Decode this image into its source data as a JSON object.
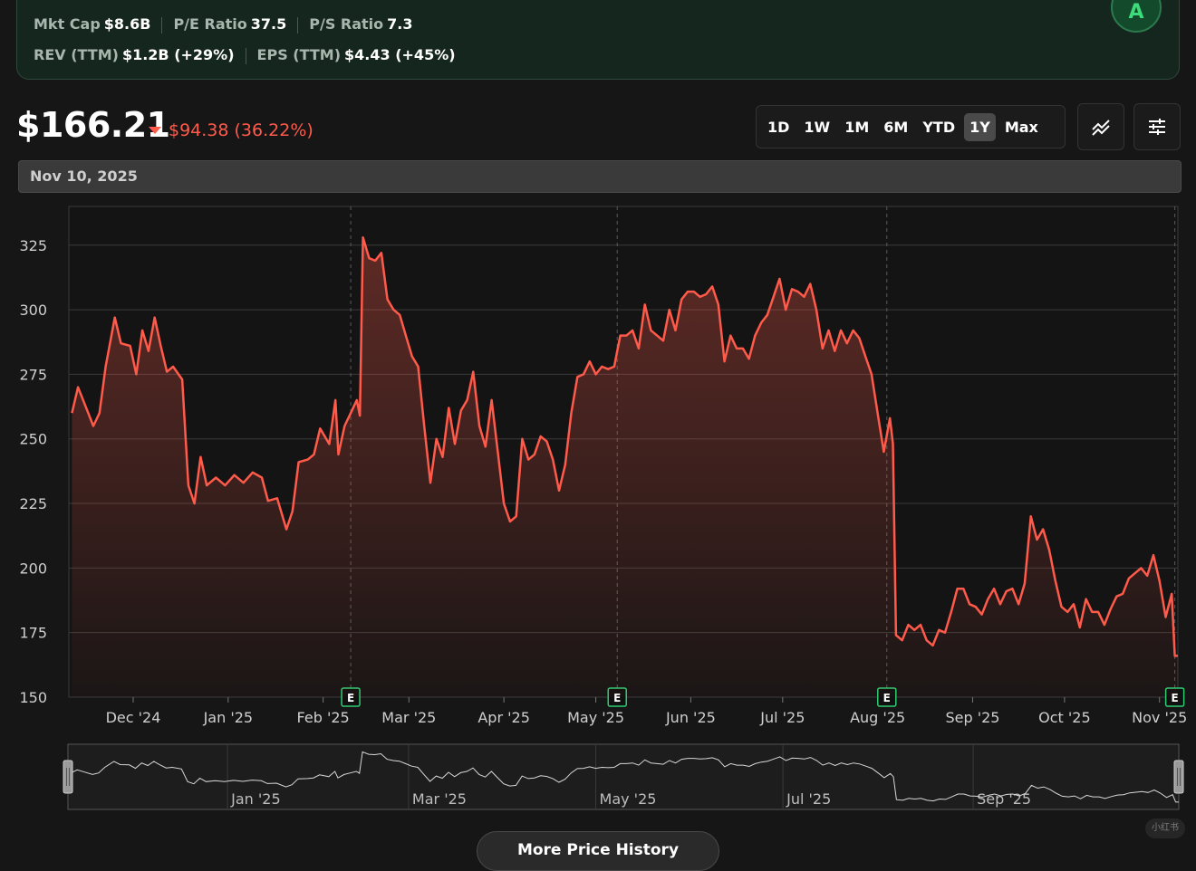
{
  "metrics": {
    "row1": [
      {
        "label": "Mkt Cap",
        "value": "$8.6B"
      },
      {
        "label": "P/E Ratio",
        "value": "37.5"
      },
      {
        "label": "P/S Ratio",
        "value": "7.3"
      }
    ],
    "row2": [
      {
        "label": "REV (TTM)",
        "value": "$1.2B (+29%)"
      },
      {
        "label": "EPS (TTM)",
        "value": "$4.43 (+45%)"
      }
    ],
    "grade": "A"
  },
  "quote": {
    "price": "$166.21",
    "change": "$94.38 (36.22%)",
    "direction": "down",
    "selected_date": "Nov 10, 2025"
  },
  "range_buttons": [
    "1D",
    "1W",
    "1M",
    "6M",
    "YTD",
    "1Y",
    "Max"
  ],
  "active_range": "1Y",
  "icons": {
    "compare": "chart-compare-icon",
    "settings": "sliders-icon"
  },
  "colors": {
    "line": "#ff5a4a",
    "earnings": "#2ecc71",
    "up": "#3ddc7a",
    "down": "#ff5a4a"
  },
  "more_button": "More Price History",
  "watermark": "小红书",
  "chart_data": {
    "type": "area",
    "ylim": [
      150,
      340
    ],
    "y_ticks": [
      150,
      175,
      200,
      225,
      250,
      275,
      300,
      325
    ],
    "x_ticks": [
      {
        "label": "Dec '24",
        "date": "2024-12-01"
      },
      {
        "label": "Jan '25",
        "date": "2025-01-01"
      },
      {
        "label": "Feb '25",
        "date": "2025-02-01"
      },
      {
        "label": "Mar '25",
        "date": "2025-03-01"
      },
      {
        "label": "Apr '25",
        "date": "2025-04-01"
      },
      {
        "label": "May '25",
        "date": "2025-05-01"
      },
      {
        "label": "Jun '25",
        "date": "2025-06-01"
      },
      {
        "label": "Jul '25",
        "date": "2025-07-01"
      },
      {
        "label": "Aug '25",
        "date": "2025-08-01"
      },
      {
        "label": "Sep '25",
        "date": "2025-09-01"
      },
      {
        "label": "Oct '25",
        "date": "2025-10-01"
      },
      {
        "label": "Nov '25",
        "date": "2025-11-01"
      }
    ],
    "earnings_markers": [
      {
        "date": "2025-02-10",
        "label": "E"
      },
      {
        "date": "2025-05-08",
        "label": "E"
      },
      {
        "date": "2025-08-04",
        "label": "E"
      },
      {
        "date": "2025-11-06",
        "label": "E"
      }
    ],
    "series": [
      {
        "points": [
          [
            "2024-11-11",
            260
          ],
          [
            "2024-11-13",
            270
          ],
          [
            "2024-11-15",
            264
          ],
          [
            "2024-11-18",
            255
          ],
          [
            "2024-11-20",
            260
          ],
          [
            "2024-11-22",
            278
          ],
          [
            "2024-11-25",
            297
          ],
          [
            "2024-11-27",
            287
          ],
          [
            "2024-11-30",
            286
          ],
          [
            "2024-12-02",
            275
          ],
          [
            "2024-12-04",
            292
          ],
          [
            "2024-12-06",
            284
          ],
          [
            "2024-12-08",
            297
          ],
          [
            "2024-12-10",
            286
          ],
          [
            "2024-12-12",
            276
          ],
          [
            "2024-12-14",
            278
          ],
          [
            "2024-12-17",
            273
          ],
          [
            "2024-12-19",
            232
          ],
          [
            "2024-12-21",
            225
          ],
          [
            "2024-12-23",
            243
          ],
          [
            "2024-12-25",
            232
          ],
          [
            "2024-12-28",
            235
          ],
          [
            "2024-12-31",
            232
          ],
          [
            "2025-01-03",
            236
          ],
          [
            "2025-01-06",
            233
          ],
          [
            "2025-01-09",
            237
          ],
          [
            "2025-01-12",
            235
          ],
          [
            "2025-01-14",
            226
          ],
          [
            "2025-01-17",
            227
          ],
          [
            "2025-01-20",
            215
          ],
          [
            "2025-01-22",
            222
          ],
          [
            "2025-01-24",
            241
          ],
          [
            "2025-01-27",
            242
          ],
          [
            "2025-01-29",
            244
          ],
          [
            "2025-01-31",
            254
          ],
          [
            "2025-02-03",
            248
          ],
          [
            "2025-02-05",
            265
          ],
          [
            "2025-02-06",
            244
          ],
          [
            "2025-02-08",
            255
          ],
          [
            "2025-02-10",
            260
          ],
          [
            "2025-02-12",
            265
          ],
          [
            "2025-02-13",
            259
          ],
          [
            "2025-02-14",
            328
          ],
          [
            "2025-02-16",
            320
          ],
          [
            "2025-02-18",
            319
          ],
          [
            "2025-02-20",
            322
          ],
          [
            "2025-02-22",
            304
          ],
          [
            "2025-02-24",
            300
          ],
          [
            "2025-02-26",
            298
          ],
          [
            "2025-02-28",
            290
          ],
          [
            "2025-03-02",
            282
          ],
          [
            "2025-03-04",
            278
          ],
          [
            "2025-03-06",
            255
          ],
          [
            "2025-03-08",
            233
          ],
          [
            "2025-03-10",
            250
          ],
          [
            "2025-03-12",
            243
          ],
          [
            "2025-03-14",
            262
          ],
          [
            "2025-03-16",
            248
          ],
          [
            "2025-03-18",
            261
          ],
          [
            "2025-03-20",
            265
          ],
          [
            "2025-03-22",
            276
          ],
          [
            "2025-03-24",
            255
          ],
          [
            "2025-03-26",
            247
          ],
          [
            "2025-03-28",
            265
          ],
          [
            "2025-03-30",
            245
          ],
          [
            "2025-04-01",
            225
          ],
          [
            "2025-04-03",
            218
          ],
          [
            "2025-04-05",
            220
          ],
          [
            "2025-04-07",
            250
          ],
          [
            "2025-04-09",
            242
          ],
          [
            "2025-04-11",
            244
          ],
          [
            "2025-04-13",
            251
          ],
          [
            "2025-04-15",
            249
          ],
          [
            "2025-04-17",
            242
          ],
          [
            "2025-04-19",
            230
          ],
          [
            "2025-04-21",
            240
          ],
          [
            "2025-04-23",
            260
          ],
          [
            "2025-04-25",
            274
          ],
          [
            "2025-04-27",
            275
          ],
          [
            "2025-04-29",
            280
          ],
          [
            "2025-05-01",
            275
          ],
          [
            "2025-05-03",
            278
          ],
          [
            "2025-05-05",
            277
          ],
          [
            "2025-05-07",
            278
          ],
          [
            "2025-05-09",
            290
          ],
          [
            "2025-05-11",
            290
          ],
          [
            "2025-05-13",
            292
          ],
          [
            "2025-05-15",
            285
          ],
          [
            "2025-05-17",
            302
          ],
          [
            "2025-05-19",
            292
          ],
          [
            "2025-05-21",
            290
          ],
          [
            "2025-05-23",
            288
          ],
          [
            "2025-05-25",
            300
          ],
          [
            "2025-05-27",
            292
          ],
          [
            "2025-05-29",
            304
          ],
          [
            "2025-05-31",
            307
          ],
          [
            "2025-06-02",
            307
          ],
          [
            "2025-06-04",
            305
          ],
          [
            "2025-06-06",
            306
          ],
          [
            "2025-06-08",
            309
          ],
          [
            "2025-06-10",
            302
          ],
          [
            "2025-06-12",
            280
          ],
          [
            "2025-06-14",
            290
          ],
          [
            "2025-06-16",
            285
          ],
          [
            "2025-06-18",
            285
          ],
          [
            "2025-06-20",
            281
          ],
          [
            "2025-06-22",
            290
          ],
          [
            "2025-06-24",
            295
          ],
          [
            "2025-06-26",
            298
          ],
          [
            "2025-06-28",
            305
          ],
          [
            "2025-06-30",
            312
          ],
          [
            "2025-07-02",
            300
          ],
          [
            "2025-07-04",
            308
          ],
          [
            "2025-07-06",
            307
          ],
          [
            "2025-07-08",
            305
          ],
          [
            "2025-07-10",
            310
          ],
          [
            "2025-07-12",
            300
          ],
          [
            "2025-07-14",
            285
          ],
          [
            "2025-07-16",
            292
          ],
          [
            "2025-07-18",
            284
          ],
          [
            "2025-07-20",
            292
          ],
          [
            "2025-07-22",
            287
          ],
          [
            "2025-07-24",
            292
          ],
          [
            "2025-07-26",
            289
          ],
          [
            "2025-07-28",
            282
          ],
          [
            "2025-07-30",
            275
          ],
          [
            "2025-08-01",
            260
          ],
          [
            "2025-08-03",
            245
          ],
          [
            "2025-08-05",
            258
          ],
          [
            "2025-08-06",
            248
          ],
          [
            "2025-08-07",
            174
          ],
          [
            "2025-08-09",
            172
          ],
          [
            "2025-08-11",
            178
          ],
          [
            "2025-08-13",
            176
          ],
          [
            "2025-08-15",
            178
          ],
          [
            "2025-08-17",
            172
          ],
          [
            "2025-08-19",
            170
          ],
          [
            "2025-08-21",
            176
          ],
          [
            "2025-08-23",
            175
          ],
          [
            "2025-08-25",
            183
          ],
          [
            "2025-08-27",
            192
          ],
          [
            "2025-08-29",
            192
          ],
          [
            "2025-08-31",
            186
          ],
          [
            "2025-09-02",
            185
          ],
          [
            "2025-09-04",
            182
          ],
          [
            "2025-09-06",
            188
          ],
          [
            "2025-09-08",
            192
          ],
          [
            "2025-09-10",
            186
          ],
          [
            "2025-09-12",
            191
          ],
          [
            "2025-09-14",
            192
          ],
          [
            "2025-09-16",
            186
          ],
          [
            "2025-09-18",
            194
          ],
          [
            "2025-09-20",
            220
          ],
          [
            "2025-09-22",
            211
          ],
          [
            "2025-09-24",
            215
          ],
          [
            "2025-09-26",
            207
          ],
          [
            "2025-09-28",
            195
          ],
          [
            "2025-09-30",
            185
          ],
          [
            "2025-10-02",
            183
          ],
          [
            "2025-10-04",
            186
          ],
          [
            "2025-10-06",
            177
          ],
          [
            "2025-10-08",
            188
          ],
          [
            "2025-10-10",
            183
          ],
          [
            "2025-10-12",
            183
          ],
          [
            "2025-10-14",
            178
          ],
          [
            "2025-10-16",
            184
          ],
          [
            "2025-10-18",
            189
          ],
          [
            "2025-10-20",
            190
          ],
          [
            "2025-10-22",
            196
          ],
          [
            "2025-10-24",
            198
          ],
          [
            "2025-10-26",
            200
          ],
          [
            "2025-10-28",
            197
          ],
          [
            "2025-10-30",
            205
          ],
          [
            "2025-11-01",
            195
          ],
          [
            "2025-11-03",
            181
          ],
          [
            "2025-11-05",
            190
          ],
          [
            "2025-11-06",
            166
          ],
          [
            "2025-11-07",
            166
          ]
        ]
      }
    ],
    "navigator": {
      "x_ticks": [
        {
          "label": "Jan '25",
          "date": "2025-01-01"
        },
        {
          "label": "Mar '25",
          "date": "2025-03-01"
        },
        {
          "label": "May '25",
          "date": "2025-05-01"
        },
        {
          "label": "Jul '25",
          "date": "2025-07-01"
        },
        {
          "label": "Sep '25",
          "date": "2025-09-01"
        }
      ]
    }
  }
}
